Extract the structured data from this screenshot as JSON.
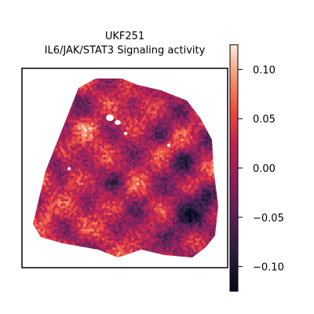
{
  "chart_data": {
    "type": "heatmap",
    "title": "UKF251",
    "subtitle": "IL6/JAK/STAT3 Signaling activity",
    "colorbar": {
      "colormap": "rocket",
      "vmin": -0.125,
      "vmax": 0.125,
      "ticks": [
        0.1,
        0.05,
        0.0,
        -0.05,
        -0.1
      ],
      "tick_labels": [
        "0.10",
        "0.05",
        "0.00",
        "−0.05",
        "−0.10"
      ]
    },
    "axes": {
      "xticks": [],
      "yticks": [],
      "frame": true
    },
    "spots": {
      "shape": "hexagonal spatial spots",
      "region": "roughly quadrilateral tissue section, wider at the bottom",
      "value_range_observed": [
        -0.12,
        0.1
      ],
      "typical_value": 0.0,
      "low_value_regions": [
        "lower right",
        "right edge",
        "center-left patches"
      ],
      "high_value_regions": [
        "scattered throughout upper and left areas"
      ],
      "holes": [
        "small gap near top-center"
      ]
    }
  }
}
